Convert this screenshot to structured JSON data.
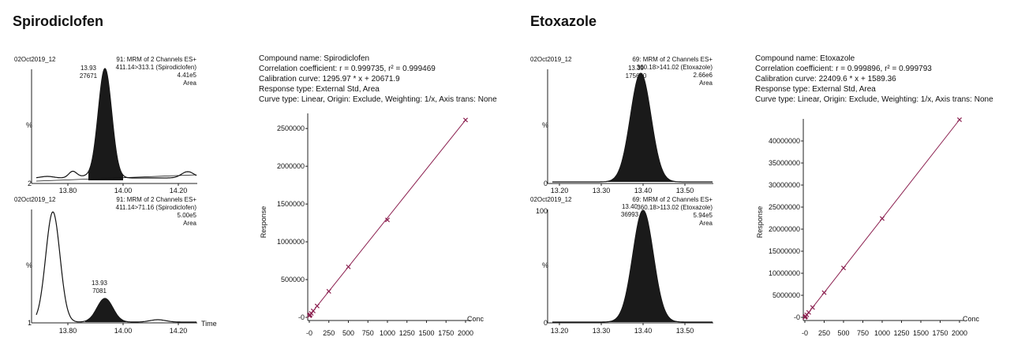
{
  "panels": [
    {
      "compound": "Spirodiclofen",
      "info_lines": [
        "Compound name: Spirodiclofen",
        "Correlation coefficient: r = 0.999735, r² = 0.999469",
        "Calibration curve: 1295.97 * x + 20671.9",
        "Response type: External Std, Area",
        "Curve type: Linear, Origin: Exclude, Weighting: 1/x, Axis trans: None"
      ],
      "chromatograms": [
        {
          "sample": "02Oct2019_12",
          "header": [
            "91: MRM of 2 Channels ES+",
            "411.14>313.1 (Spirodiclofen)",
            "4.41e5",
            "Area"
          ],
          "peak_rt": "13.93",
          "peak_area": "27671",
          "y_label": "%",
          "y_ticks": [
            "",
            "2"
          ],
          "x_ticks": [
            "13.80",
            "14.00",
            "14.20"
          ],
          "x_axis_label": ""
        },
        {
          "sample": "02Oct2019_12",
          "header": [
            "91: MRM of 2 Channels ES+",
            "411.14>71.16 (Spirodiclofen)",
            "5.00e5",
            "Area"
          ],
          "peak_rt": "13.93",
          "peak_area": "7081",
          "y_label": "%",
          "y_ticks": [
            "",
            "1"
          ],
          "x_ticks": [
            "13.80",
            "14.00",
            "14.20"
          ],
          "x_axis_label": "Time"
        }
      ],
      "calibration": {
        "type": "scatter",
        "y_axis_label": "Response",
        "x_axis_label": "Conc",
        "x_ticks": [
          "-0",
          "250",
          "500",
          "750",
          "1000",
          "1250",
          "1500",
          "1750",
          "2000"
        ],
        "y_ticks": [
          "-0",
          "500000",
          "1000000",
          "1500000",
          "2000000",
          "2500000"
        ],
        "xlim": [
          -20,
          2000
        ],
        "ylim": [
          0,
          2700000
        ],
        "slope": 1295.97,
        "intercept": 20671.9,
        "points": [
          [
            1,
            22000
          ],
          [
            2,
            23300
          ],
          [
            5,
            27200
          ],
          [
            10,
            33600
          ],
          [
            25,
            53000
          ],
          [
            50,
            85500
          ],
          [
            100,
            150300
          ],
          [
            250,
            344700
          ],
          [
            500,
            668700
          ],
          [
            1000,
            1290000
          ],
          [
            2000,
            2612600
          ]
        ]
      }
    },
    {
      "compound": "Etoxazole",
      "info_lines": [
        "Compound name: Etoxazole",
        "Correlation coefficient: r = 0.999896, r² = 0.999793",
        "Calibration curve: 22409.6 * x + 1589.36",
        "Response type: External Std, Area",
        "Curve type: Linear, Origin: Exclude, Weighting: 1/x, Axis trans: None"
      ],
      "chromatograms": [
        {
          "sample": "02Oct2019_12",
          "header": [
            "69: MRM of 2 Channels ES+",
            "360.18>141.02 (Etoxazole)",
            "2.66e6",
            "Area"
          ],
          "peak_rt": "13.39",
          "peak_area": "175650",
          "y_label": "%",
          "y_ticks": [
            "",
            "0"
          ],
          "x_ticks": [
            "13.20",
            "13.30",
            "13.40",
            "13.50"
          ],
          "x_axis_label": ""
        },
        {
          "sample": "02Oct2019_12",
          "header": [
            "69: MRM of 2 Channels ES+",
            "360.18>113.02 (Etoxazole)",
            "5.94e5",
            "Area"
          ],
          "peak_rt": "13.40",
          "peak_area": "36993",
          "y_label": "%",
          "y_ticks": [
            "100",
            "0"
          ],
          "x_ticks": [
            "13.20",
            "13.30",
            "13.40",
            "13.50"
          ],
          "x_axis_label": ""
        }
      ],
      "calibration": {
        "type": "scatter",
        "y_axis_label": "Response",
        "x_axis_label": "Conc",
        "x_ticks": [
          "-0",
          "250",
          "500",
          "750",
          "1000",
          "1250",
          "1500",
          "1750",
          "2000"
        ],
        "y_ticks": [
          "-0",
          "5000000",
          "10000000",
          "15000000",
          "20000000",
          "25000000",
          "30000000",
          "35000000",
          "40000000"
        ],
        "xlim": [
          -20,
          2000
        ],
        "ylim": [
          0,
          45000000
        ],
        "slope": 22409.6,
        "intercept": 1589.36,
        "points": [
          [
            1,
            24000
          ],
          [
            2,
            46400
          ],
          [
            5,
            113600
          ],
          [
            10,
            225700
          ],
          [
            25,
            561800
          ],
          [
            50,
            1122000
          ],
          [
            100,
            2242500
          ],
          [
            250,
            5603900
          ],
          [
            500,
            11206400
          ],
          [
            1000,
            22411200
          ],
          [
            2000,
            44820800
          ]
        ]
      }
    }
  ],
  "colors": {
    "trace": "#111111",
    "fill": "#1a1a1a",
    "marker": "#8b1f4f",
    "line": "#8b1f4f"
  }
}
